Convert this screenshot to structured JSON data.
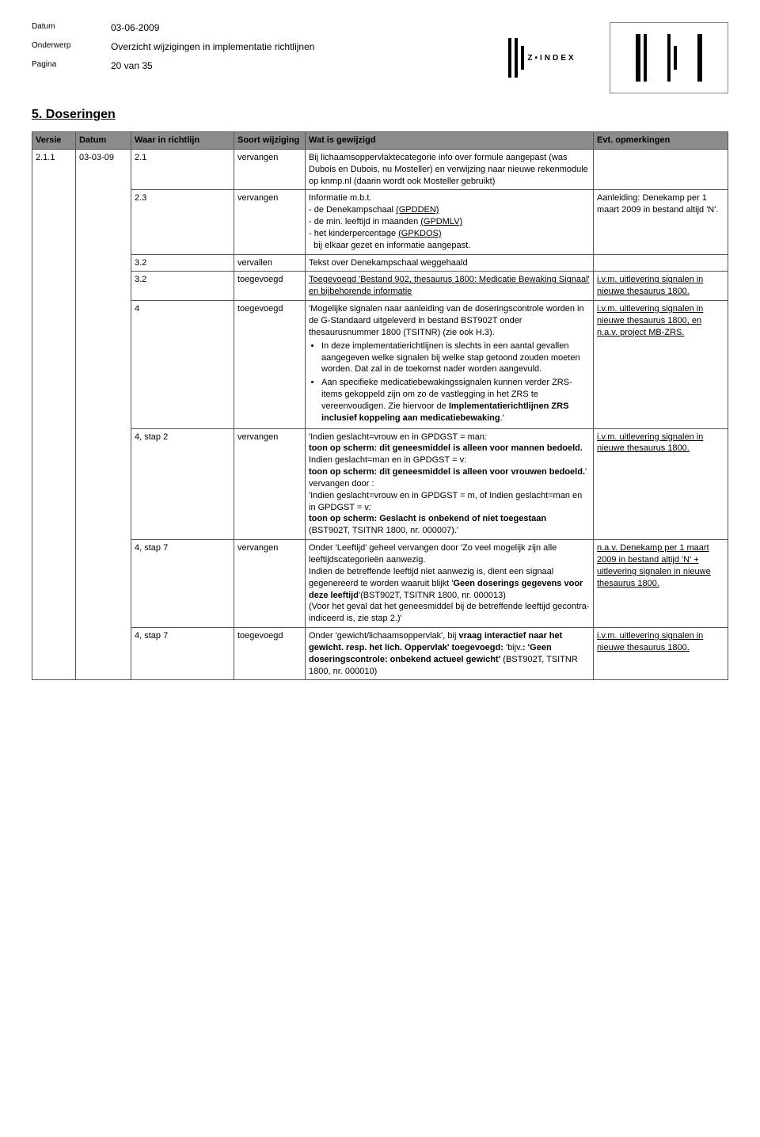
{
  "meta": {
    "datum_label": "Datum",
    "datum_value": "03-06-2009",
    "onderwerp_label": "Onderwerp",
    "onderwerp_value": "Overzicht wijzigingen in implementatie richtlijnen",
    "pagina_label": "Pagina",
    "pagina_value": "20 van 35"
  },
  "logo_text": "Z•INDEX",
  "section_title": "5. Doseringen",
  "table": {
    "headers": {
      "versie": "Versie",
      "datum": "Datum",
      "waar": "Waar in richtlijn",
      "soort": "Soort wijziging",
      "change": "Wat is gewijzigd",
      "opm": "Evt. opmerkingen"
    },
    "first": {
      "versie": "2.1.1",
      "datum": "03-03-09"
    },
    "rows": [
      {
        "waar": "2.1",
        "soort": "vervangen",
        "change_html": "Bij lichaamsoppervlaktecategorie info over formule aangepast (was Dubois en Dubois, nu Mosteller) en verwijzing naar nieuwe rekenmodule op knmp.nl (daarin wordt ook Mosteller gebruikt)",
        "opm_html": ""
      },
      {
        "waar": "2.3",
        "soort": "vervangen",
        "change_html": "Informatie m.b.t.<br>- de Denekampschaal <span class=\"u\">(GPDDEN)</span><br>- de min. leeftijd in maanden <span class=\"u\">(GPDMLV)</span><br>- het kinderpercentage <span class=\"u\">(GPKDOS)</span><br>&nbsp;&nbsp;bij elkaar gezet en informatie aangepast.",
        "opm_html": "Aanleiding: Denekamp per 1 maart 2009 in bestand altijd 'N'."
      },
      {
        "waar": "3.2",
        "soort": "vervallen",
        "change_html": "Tekst over Denekampschaal weggehaald",
        "opm_html": ""
      },
      {
        "waar": "3.2",
        "soort": "toegevoegd",
        "change_html": "<span class=\"u\">Toegevoegd 'Bestand 902, thesaurus 1800: Medicatie Bewaking Signaal' en bijbehorende informatie</span>",
        "opm_html": "<span class=\"u\">i.v.m. uitlevering signalen in nieuwe thesaurus 1800.</span>"
      },
      {
        "waar": "4",
        "soort": "toegevoegd",
        "change_html": "'Mogelijke signalen naar aanleiding van de doseringscontrole worden in de G-Standaard uitgeleverd in bestand BST902T onder thesaurusnummer 1800 (TSITNR) (zie ook H.3).<ul><li>In deze implementatierichtlijnen is slechts in een aantal gevallen aangegeven welke signalen bij welke stap getoond zouden moeten worden. Dat zal in de toekomst nader worden aangevuld.</li><li>Aan specifieke medicatiebewakingssignalen kunnen verder ZRS-items gekoppeld zijn om zo de vastlegging in het ZRS te vereenvoudigen. Zie hiervoor de <b>Implementatierichtlijnen ZRS inclusief koppeling aan medicatiebewaking</b>.'</li></ul>",
        "opm_html": "<span class=\"u\">i.v.m. uitlevering signalen in nieuwe thesaurus 1800, en n.a.v. project MB-ZRS.</span>"
      },
      {
        "waar": "4, stap 2",
        "soort": "vervangen",
        "change_html": "'Indien geslacht=vrouw en in GPDGST = man<i>:</i><br><b>toon op scherm: dit geneesmiddel is alleen voor mannen bedoeld.</b><br>Indien geslacht=man en in GPDGST = v:<br><b>toon op scherm: dit geneesmiddel is alleen voor vrouwen bedoeld.</b>'<br>vervangen door :<br>'Indien geslacht=vrouw en in GPDGST = m, of Indien geslacht=man en in GPDGST = v<i>:</i><br><b>toon op scherm: Geslacht is onbekend of niet toegestaan</b> (BST902T, TSITNR 1800, nr. 000007).'",
        "opm_html": "<span class=\"u\">i.v.m. uitlevering signalen in nieuwe thesaurus 1800.</span>"
      },
      {
        "waar": "4, stap 7",
        "soort": "vervangen",
        "change_html": "Onder 'Leeftijd' geheel vervangen door 'Zo veel mogelijk zijn alle leeftijdscategorieën aanwezig.<br>Indien de betreffende leeftijd niet aanwezig is, dient een signaal gegenereerd te worden waaruit blijkt '<b>Geen doserings gegevens voor deze leeftijd</b>'(BST902T, TSITNR 1800, nr. 000013)<br>(Voor het geval dat het geneesmiddel bij de betreffende leeftijd gecontra-indiceerd is, zie stap 2.)'",
        "opm_html": "<span class=\"u\">n.a.v. Denekamp per 1 maart 2009 in bestand altijd 'N' + uitlevering signalen in nieuwe thesaurus 1800.</span>"
      },
      {
        "waar": "4, stap 7",
        "soort": "toegevoegd",
        "change_html": "Onder 'gewicht/lichaamsoppervlak', bij <b>vraag interactief naar het gewicht. resp. het lich. Oppervlak' toegevoegd:</b> 'bijv.<b>: 'Geen doseringscontrole: onbekend actueel gewicht'</b> (BST902T, TSITNR 1800, nr. 000010)",
        "opm_html": "<span class=\"u\">i.v.m. uitlevering signalen in nieuwe thesaurus 1800.</span>"
      }
    ]
  },
  "colors": {
    "header_bg": "#8c8c8c",
    "border": "#555555",
    "text": "#000000",
    "bg": "#ffffff"
  }
}
